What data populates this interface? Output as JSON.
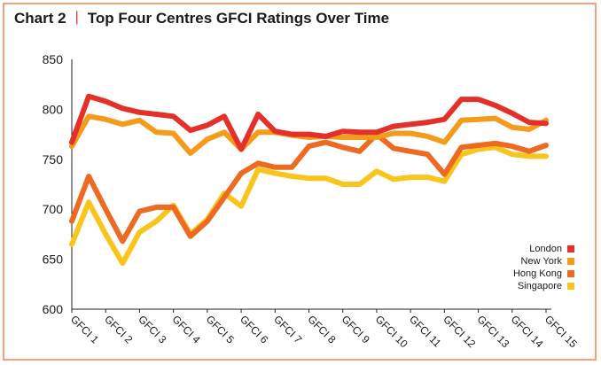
{
  "title": {
    "chart_label": "Chart 2",
    "separator": "|",
    "text": "Top Four Centres GFCI Ratings Over Time"
  },
  "colors": {
    "frame": "#f3a27a",
    "title_separator": "#e0332c"
  },
  "chart_data": {
    "type": "line",
    "title": "Top Four Centres GFCI Ratings Over Time",
    "xlabel": "",
    "ylabel": "",
    "ylim": [
      600,
      850
    ],
    "yticks": [
      600,
      650,
      700,
      750,
      800,
      850
    ],
    "grid": false,
    "legend_placement": "bottom-right",
    "categories": [
      "GFCI 1",
      "GFCI 2",
      "GFCI 3",
      "GFCI 4",
      "GFCI 5",
      "GFCI 6",
      "GFCI 7",
      "GFCI 8",
      "GFCI 9",
      "GFCI 10",
      "GFCI 11",
      "GFCI 12",
      "GFCI 13",
      "GFCI 14",
      "GFCI 15"
    ],
    "x": [
      1,
      1.5,
      2,
      2.5,
      3,
      3.5,
      4,
      4.5,
      5,
      5.5,
      6,
      6.5,
      7,
      7.5,
      8,
      8.5,
      9,
      9.5,
      10,
      10.5,
      11,
      11.5,
      12,
      12.5,
      13,
      13.5,
      14,
      14.5,
      15
    ],
    "series": [
      {
        "name": "Singapore",
        "color": "#f7c51c",
        "values": [
          665,
          707,
          675,
          646,
          677,
          688,
          704,
          675,
          690,
          716,
          703,
          740,
          736,
          733,
          731,
          731,
          725,
          725,
          738,
          730,
          732,
          732,
          728,
          755,
          760,
          762,
          755,
          753,
          753
        ]
      },
      {
        "name": "Hong Kong",
        "color": "#ec6a22",
        "values": [
          688,
          733,
          700,
          668,
          698,
          702,
          702,
          673,
          688,
          712,
          736,
          746,
          742,
          742,
          763,
          767,
          762,
          758,
          775,
          761,
          758,
          755,
          735,
          762,
          764,
          766,
          763,
          758,
          764
        ]
      },
      {
        "name": "New York",
        "color": "#f59b1b",
        "values": [
          763,
          793,
          790,
          785,
          789,
          777,
          776,
          756,
          770,
          777,
          760,
          777,
          777,
          774,
          772,
          773,
          772,
          772,
          772,
          776,
          776,
          773,
          767,
          789,
          790,
          791,
          782,
          780,
          789
        ]
      },
      {
        "name": "London",
        "color": "#e5302a",
        "values": [
          767,
          813,
          808,
          801,
          797,
          795,
          793,
          779,
          784,
          793,
          760,
          795,
          778,
          775,
          775,
          773,
          778,
          777,
          777,
          783,
          785,
          787,
          790,
          810,
          810,
          804,
          796,
          787,
          786
        ]
      }
    ]
  }
}
